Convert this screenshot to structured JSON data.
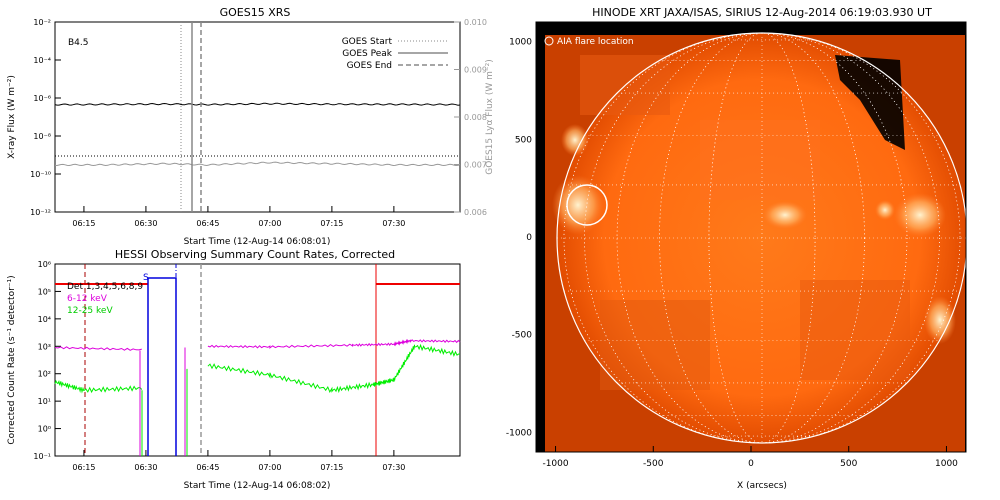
{
  "goes": {
    "title": "GOES15 XRS",
    "class_label": "B4.5",
    "ylabel_left": "X-ray Flux (W m⁻²)",
    "ylabel_right": "GOES15 Lyα Flux (W m⁻²)",
    "xlabel": "Start Time (12-Aug-14 06:08:01)",
    "legend": [
      "GOES Start",
      "GOES Peak",
      "GOES End"
    ],
    "left_ticks": [
      "10⁻²",
      "10⁻⁴",
      "10⁻⁶",
      "10⁻⁸",
      "10⁻¹⁰",
      "10⁻¹²"
    ],
    "right_ticks": [
      "0.010",
      "0.009",
      "0.008",
      "0.007",
      "0.006"
    ],
    "x_ticks": [
      "06:15",
      "06:30",
      "06:45",
      "07:00",
      "07:15",
      "07:30"
    ]
  },
  "hessi": {
    "title": "HESSI Observing Summary Count Rates, Corrected",
    "ylabel": "Corrected Count Rate (s⁻¹ detector⁻¹)",
    "xlabel": "Start Time (12-Aug-14 06:08:02)",
    "legend": [
      "Det 1,3,4,5,6,8,9",
      "6-12 keV",
      "12-25 keV"
    ],
    "flag_label": "S",
    "y_ticks": [
      "10⁶",
      "10⁵",
      "10⁴",
      "10³",
      "10²",
      "10¹",
      "10⁰",
      "10⁻¹"
    ],
    "x_ticks": [
      "06:15",
      "06:30",
      "06:45",
      "07:00",
      "07:15",
      "07:30"
    ]
  },
  "sun": {
    "title": "HINODE XRT JAXA/ISAS, SIRIUS 12-Aug-2014 06:19:03.930 UT",
    "legend": "AIA flare location",
    "xlabel": "X (arcsecs)",
    "x_ticks": [
      "-1000",
      "-500",
      "0",
      "500",
      "1000"
    ],
    "y_ticks": [
      "1000",
      "500",
      "0",
      "-500",
      "-1000"
    ]
  },
  "colors": {
    "goes_long": "#000000",
    "goes_short": "#999999",
    "hessi_612": "#dd00dd",
    "hessi_1225": "#00ee00",
    "attenuator": "#ee0000",
    "saa": "#0000dd",
    "sun_core": "#ff7a1a",
    "sun_edge": "#c93a00"
  },
  "chart_data": [
    {
      "type": "line",
      "title": "GOES15 XRS",
      "xlabel": "Start Time (12-Aug-14 06:08:01)",
      "ylabel": "X-ray Flux (W m⁻²)",
      "x_range": [
        "06:08",
        "07:46"
      ],
      "ylim": [
        1e-12,
        0.01
      ],
      "yscale": "log",
      "series": [
        {
          "x": [
            "06:08",
            "06:20",
            "06:35",
            "06:45",
            "07:00",
            "07:15",
            "07:30",
            "07:46"
          ],
          "values": [
            4.5e-07,
            4.6e-07,
            4.8e-07,
            4.5e-07,
            5e-07,
            4.7e-07,
            4.6e-07,
            4.5e-07
          ]
        },
        {
          "x": [
            "06:08",
            "06:20",
            "06:35",
            "06:45",
            "07:00",
            "07:15",
            "07:30",
            "07:46"
          ],
          "values": [
            3e-10,
            3e-10,
            3.5e-10,
            3e-10,
            4e-10,
            3.5e-10,
            3e-10,
            3e-10
          ]
        }
      ],
      "markers": [
        {
          "name": "GOES Start",
          "x": "06:41"
        },
        {
          "name": "GOES Peak",
          "x": "06:42"
        },
        {
          "name": "GOES End",
          "x": "06:44"
        }
      ]
    },
    {
      "type": "line",
      "title": "HESSI Observing Summary Count Rates, Corrected",
      "xlabel": "Start Time (12-Aug-14 06:08:02)",
      "ylabel": "Corrected Count Rate (s⁻¹ detector⁻¹)",
      "x_range": [
        "06:08",
        "07:46"
      ],
      "ylim": [
        0.1,
        1000000.0
      ],
      "yscale": "log",
      "series": [
        {
          "name": "6-12 keV",
          "x": [
            "06:08",
            "06:29",
            "06:39",
            "06:45",
            "07:00",
            "07:20",
            "07:30",
            "07:34",
            "07:46"
          ],
          "values": [
            900,
            750,
            null,
            1000,
            950,
            1100,
            1200,
            1600,
            1500
          ]
        },
        {
          "name": "12-25 keV",
          "x": [
            "06:08",
            "06:15",
            "06:29",
            "06:39",
            "06:45",
            "07:00",
            "07:15",
            "07:25",
            "07:30",
            "07:35",
            "07:46"
          ],
          "values": [
            50,
            25,
            30,
            null,
            200,
            90,
            25,
            40,
            60,
            1000,
            500
          ]
        }
      ]
    }
  ]
}
